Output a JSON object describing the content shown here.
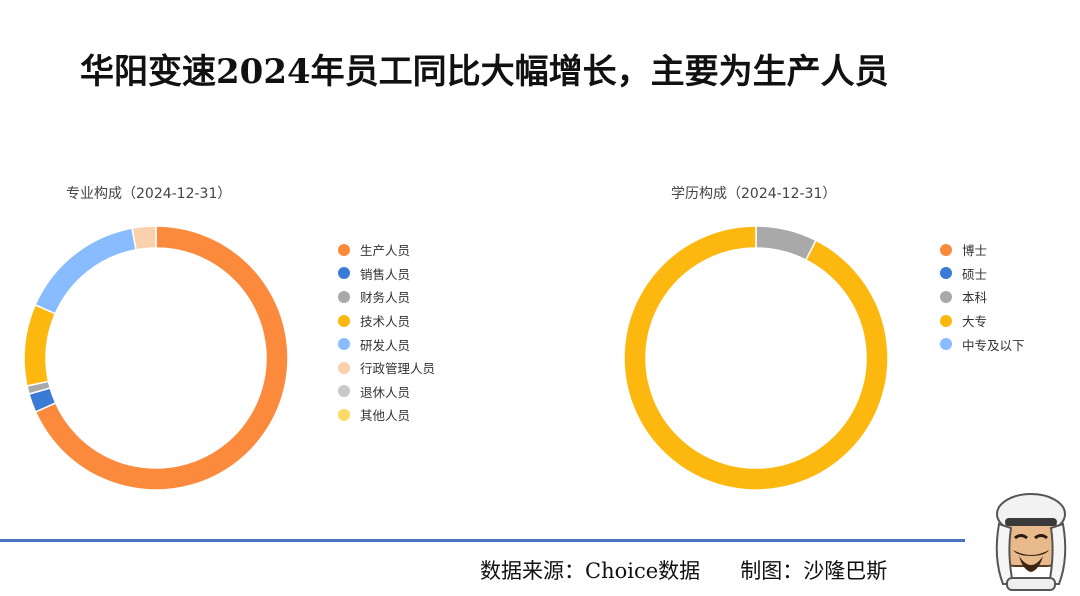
{
  "header": {
    "title": "华阳变速2024年员工同比大幅增长，主要为生产人员"
  },
  "footer": {
    "source": "数据来源：Choice数据",
    "author": "制图：沙隆巴斯"
  },
  "chart_data": [
    {
      "type": "pie",
      "title": "专业构成（2024-12-31）",
      "categories": [
        "生产人员",
        "销售人员",
        "财务人员",
        "技术人员",
        "研发人员",
        "行政管理人员",
        "退休人员",
        "其他人员"
      ],
      "values": [
        68.3,
        2.3,
        1.0,
        10.0,
        15.5,
        2.9,
        0,
        0
      ],
      "colors": [
        "#fc8a3c",
        "#3a7bd5",
        "#a9a9a9",
        "#fcb80f",
        "#89bcff",
        "#fbd0ac",
        "#c8c8c8",
        "#ffd966"
      ],
      "legend_position": "right"
    },
    {
      "type": "pie",
      "title": "学历构成（2024-12-31）",
      "categories": [
        "博士",
        "硕士",
        "本科",
        "大专",
        "中专及以下"
      ],
      "values": [
        0,
        0,
        7.5,
        92.5,
        0
      ],
      "colors": [
        "#fc8a3c",
        "#3a7bd5",
        "#a9a9a9",
        "#fcb80f",
        "#89bcff"
      ],
      "legend_position": "right"
    }
  ]
}
